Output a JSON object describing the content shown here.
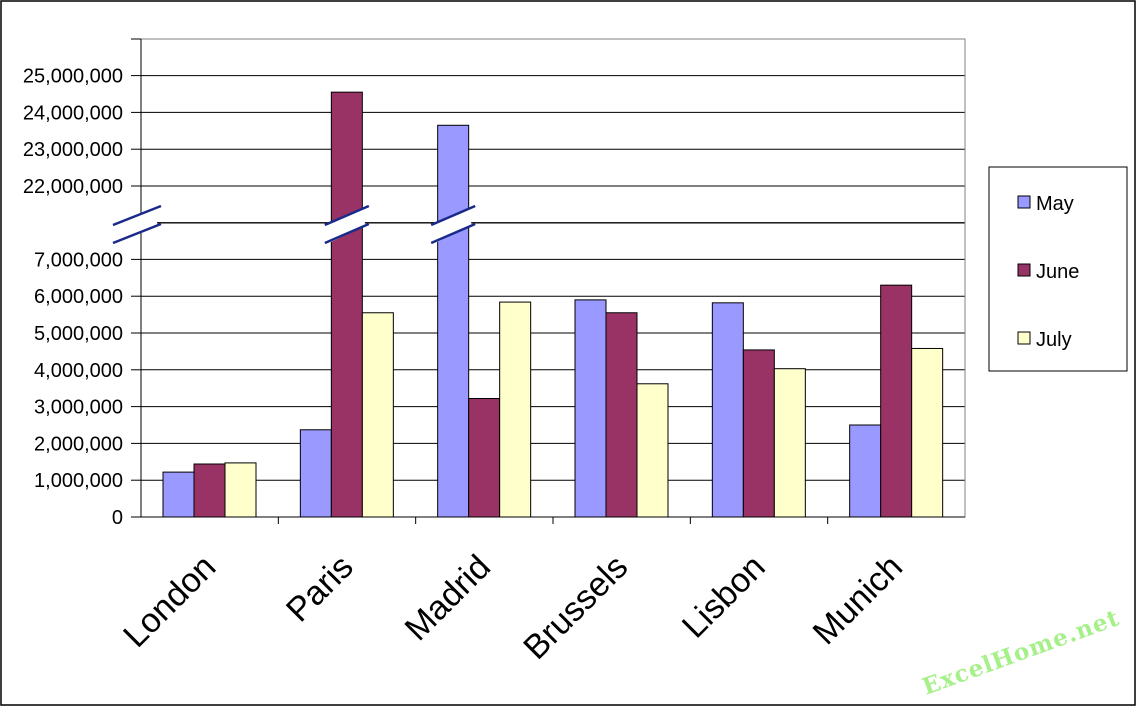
{
  "chart_data": {
    "type": "bar",
    "categories": [
      "London",
      "Paris",
      "Madrid",
      "Brussels",
      "Lisbon",
      "Munich"
    ],
    "series": [
      {
        "name": "May",
        "color": "#9999ff",
        "values": [
          1220000,
          2370000,
          23650000,
          5900000,
          5820000,
          2500000
        ]
      },
      {
        "name": "June",
        "color": "#993366",
        "values": [
          1440000,
          24550000,
          3220000,
          5550000,
          4540000,
          6300000
        ]
      },
      {
        "name": "July",
        "color": "#ffffcc",
        "values": [
          1470000,
          5550000,
          5840000,
          3620000,
          4030000,
          4580000
        ]
      }
    ],
    "y_ticks": [
      {
        "value": 0,
        "label": "0"
      },
      {
        "value": 1000000,
        "label": "1,000,000"
      },
      {
        "value": 2000000,
        "label": "2,000,000"
      },
      {
        "value": 3000000,
        "label": "3,000,000"
      },
      {
        "value": 4000000,
        "label": "4,000,000"
      },
      {
        "value": 5000000,
        "label": "5,000,000"
      },
      {
        "value": 6000000,
        "label": "6,000,000"
      },
      {
        "value": 7000000,
        "label": "7,000,000"
      },
      {
        "value": 22000000,
        "label": "22,000,000"
      },
      {
        "value": 23000000,
        "label": "23,000,000"
      },
      {
        "value": 24000000,
        "label": "24,000,000"
      },
      {
        "value": 25000000,
        "label": "25,000,000"
      }
    ],
    "axis_break": {
      "lower_max": 8000000,
      "upper_min": 21000000
    },
    "ylim": [
      0,
      26000000
    ],
    "grid": true,
    "legend_position": "right",
    "title": "",
    "xlabel": "",
    "ylabel": ""
  },
  "watermark": "ExcelHome.net"
}
